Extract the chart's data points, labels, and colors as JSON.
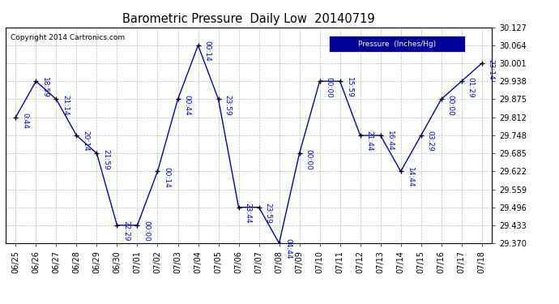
{
  "title": "Barometric Pressure  Daily Low  20140719",
  "copyright": "Copyright 2014 Cartronics.com",
  "line_color": "#0000bb",
  "marker_color": "#000000",
  "label_color": "#0000ee",
  "background_color": "#ffffff",
  "grid_color": "#bbbbbb",
  "ylim": [
    29.37,
    30.127
  ],
  "yticks": [
    29.37,
    29.433,
    29.496,
    29.559,
    29.622,
    29.685,
    29.748,
    29.812,
    29.875,
    29.938,
    30.001,
    30.064,
    30.127
  ],
  "x_labels": [
    "06/25",
    "06/26",
    "06/27",
    "06/28",
    "06/29",
    "06/30",
    "07/01",
    "07/02",
    "07/03",
    "07/04",
    "07/05",
    "07/06",
    "07/07",
    "07/08",
    "07/09",
    "07/10",
    "07/11",
    "07/12",
    "07/13",
    "07/14",
    "07/15",
    "07/16",
    "07/17",
    "07/18"
  ],
  "points": [
    [
      0,
      29.812,
      "0:44"
    ],
    [
      1,
      29.938,
      "18:59"
    ],
    [
      2,
      29.875,
      "21:14"
    ],
    [
      3,
      29.748,
      "20:14"
    ],
    [
      4,
      29.685,
      "21:59"
    ],
    [
      5,
      29.433,
      "22:29"
    ],
    [
      6,
      29.433,
      "00:00"
    ],
    [
      7,
      29.622,
      "00:14"
    ],
    [
      8,
      29.875,
      "00:44"
    ],
    [
      9,
      30.064,
      "00:14"
    ],
    [
      10,
      29.875,
      "23:59"
    ],
    [
      11,
      29.496,
      "23:44"
    ],
    [
      12,
      29.496,
      "23:59"
    ],
    [
      13,
      29.37,
      "04:44"
    ],
    [
      14,
      29.685,
      "00:00"
    ],
    [
      15,
      29.938,
      "00:00"
    ],
    [
      16,
      29.938,
      "15:59"
    ],
    [
      17,
      29.748,
      "21:44"
    ],
    [
      18,
      29.748,
      "16:44"
    ],
    [
      19,
      29.622,
      "14:44"
    ],
    [
      20,
      29.748,
      "03:29"
    ],
    [
      21,
      29.875,
      "00:00"
    ],
    [
      22,
      29.938,
      "01:29"
    ],
    [
      23,
      30.001,
      "23:14"
    ]
  ],
  "legend_text": "Pressure  (Inches/Hg)",
  "legend_bg": "#000099",
  "legend_fg": "#ffffff"
}
